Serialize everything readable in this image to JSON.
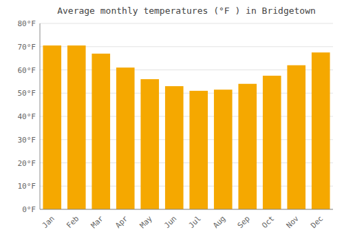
{
  "chart_data": {
    "type": "bar",
    "title": "Average monthly temperatures (°F ) in Bridgetown",
    "categories": [
      "Jan",
      "Feb",
      "Mar",
      "Apr",
      "May",
      "Jun",
      "Jul",
      "Aug",
      "Sep",
      "Oct",
      "Nov",
      "Dec"
    ],
    "values": [
      70.5,
      70.5,
      67,
      61,
      56,
      53,
      51,
      51.5,
      54,
      57.5,
      62,
      67.5
    ],
    "color": "#F5A800",
    "ylim": [
      0,
      80
    ],
    "yticks": [
      {
        "value": 0,
        "label": "0°F"
      },
      {
        "value": 10,
        "label": "10°F"
      },
      {
        "value": 20,
        "label": "20°F"
      },
      {
        "value": 30,
        "label": "30°F"
      },
      {
        "value": 40,
        "label": "40°F"
      },
      {
        "value": 50,
        "label": "50°F"
      },
      {
        "value": 60,
        "label": "60°F"
      },
      {
        "value": 70,
        "label": "70°F"
      },
      {
        "value": 80,
        "label": "80°F"
      }
    ],
    "grid": true
  }
}
